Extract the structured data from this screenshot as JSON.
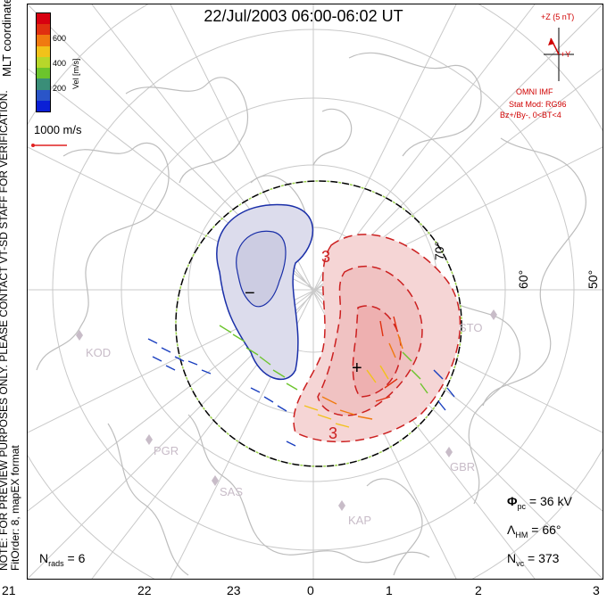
{
  "title": "22/Jul/2003 06:00-06:02 UT",
  "side_note_line1": "NOTE: FOR PREVIEW PURPOSES ONLY. PLEASE CONTACT VT-SD STAFF FOR VERIFICATION.",
  "side_note_line2": "FitOrder: 8, mapEX format",
  "mlt_coords_label": "MLT coordinates",
  "colorbar": {
    "label": "Vel [m/s]",
    "ticks": [
      "600",
      "400",
      "200"
    ],
    "colors": [
      "#0a1fd6",
      "#2a55c8",
      "#3a8e78",
      "#6cc42c",
      "#b7d72a",
      "#f2c21a",
      "#f07a10",
      "#e03010",
      "#d80010"
    ]
  },
  "scale_vector_label": "1000 m/s",
  "imf": {
    "z_label": "+Z (5 nT)",
    "y_label": "+Y",
    "source": "OMNI IMF",
    "stat_mod": "Stat Mod: RG96",
    "condition": "Bz+/By-, 0<BT<4"
  },
  "mlt_labels": [
    "21",
    "22",
    "23",
    "0",
    "1",
    "2",
    "3"
  ],
  "lat_labels": [
    "70°",
    "60°",
    "50°"
  ],
  "sites": [
    "KOD",
    "PGR",
    "SAS",
    "KAP",
    "GBR",
    "STO"
  ],
  "contour_labels": {
    "negative": "−",
    "positive": "+",
    "pos_3": "3",
    "neg_3": "3"
  },
  "stats": {
    "phi_pc": "36 kV",
    "lambda_hm": "66°",
    "n_vc": "373",
    "n_rads": "6"
  },
  "stat_symbols": {
    "phi": "Φ",
    "phi_sub": "pc",
    "lambda": "Λ",
    "lambda_sub": "HM",
    "nvc": "N",
    "nvc_sub": "vc",
    "nrads": "N",
    "nrads_sub": "rads"
  }
}
